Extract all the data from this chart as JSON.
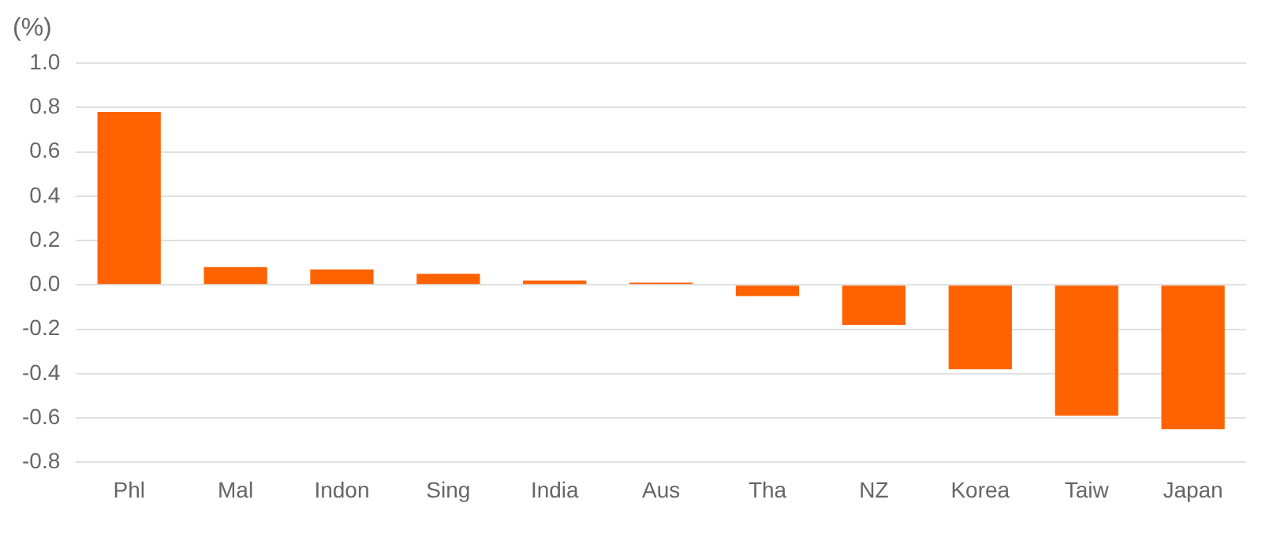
{
  "chart_data": {
    "type": "bar",
    "ylabel": "(%)",
    "categories": [
      "Phl",
      "Mal",
      "Indon",
      "Sing",
      "India",
      "Aus",
      "Tha",
      "NZ",
      "Korea",
      "Taiw",
      "Japan"
    ],
    "values": [
      0.78,
      0.08,
      0.07,
      0.05,
      0.02,
      0.01,
      -0.05,
      -0.18,
      -0.38,
      -0.59,
      -0.65
    ],
    "color": "#ff6200",
    "ylim": [
      -0.8,
      1.0
    ],
    "yticks": [
      {
        "value": -0.8,
        "label": "-0.8"
      },
      {
        "value": -0.6,
        "label": "-0.6"
      },
      {
        "value": -0.4,
        "label": "-0.4"
      },
      {
        "value": -0.2,
        "label": "-0.2"
      },
      {
        "value": 0,
        "label": "0.0"
      },
      {
        "value": 0.2,
        "label": "0.2"
      },
      {
        "value": 0.4,
        "label": "0.4"
      },
      {
        "value": 0.6,
        "label": "0.6"
      },
      {
        "value": 0.8,
        "label": "0.8"
      },
      {
        "value": 1,
        "label": "1.0"
      }
    ],
    "grid": "y",
    "legend": false
  }
}
